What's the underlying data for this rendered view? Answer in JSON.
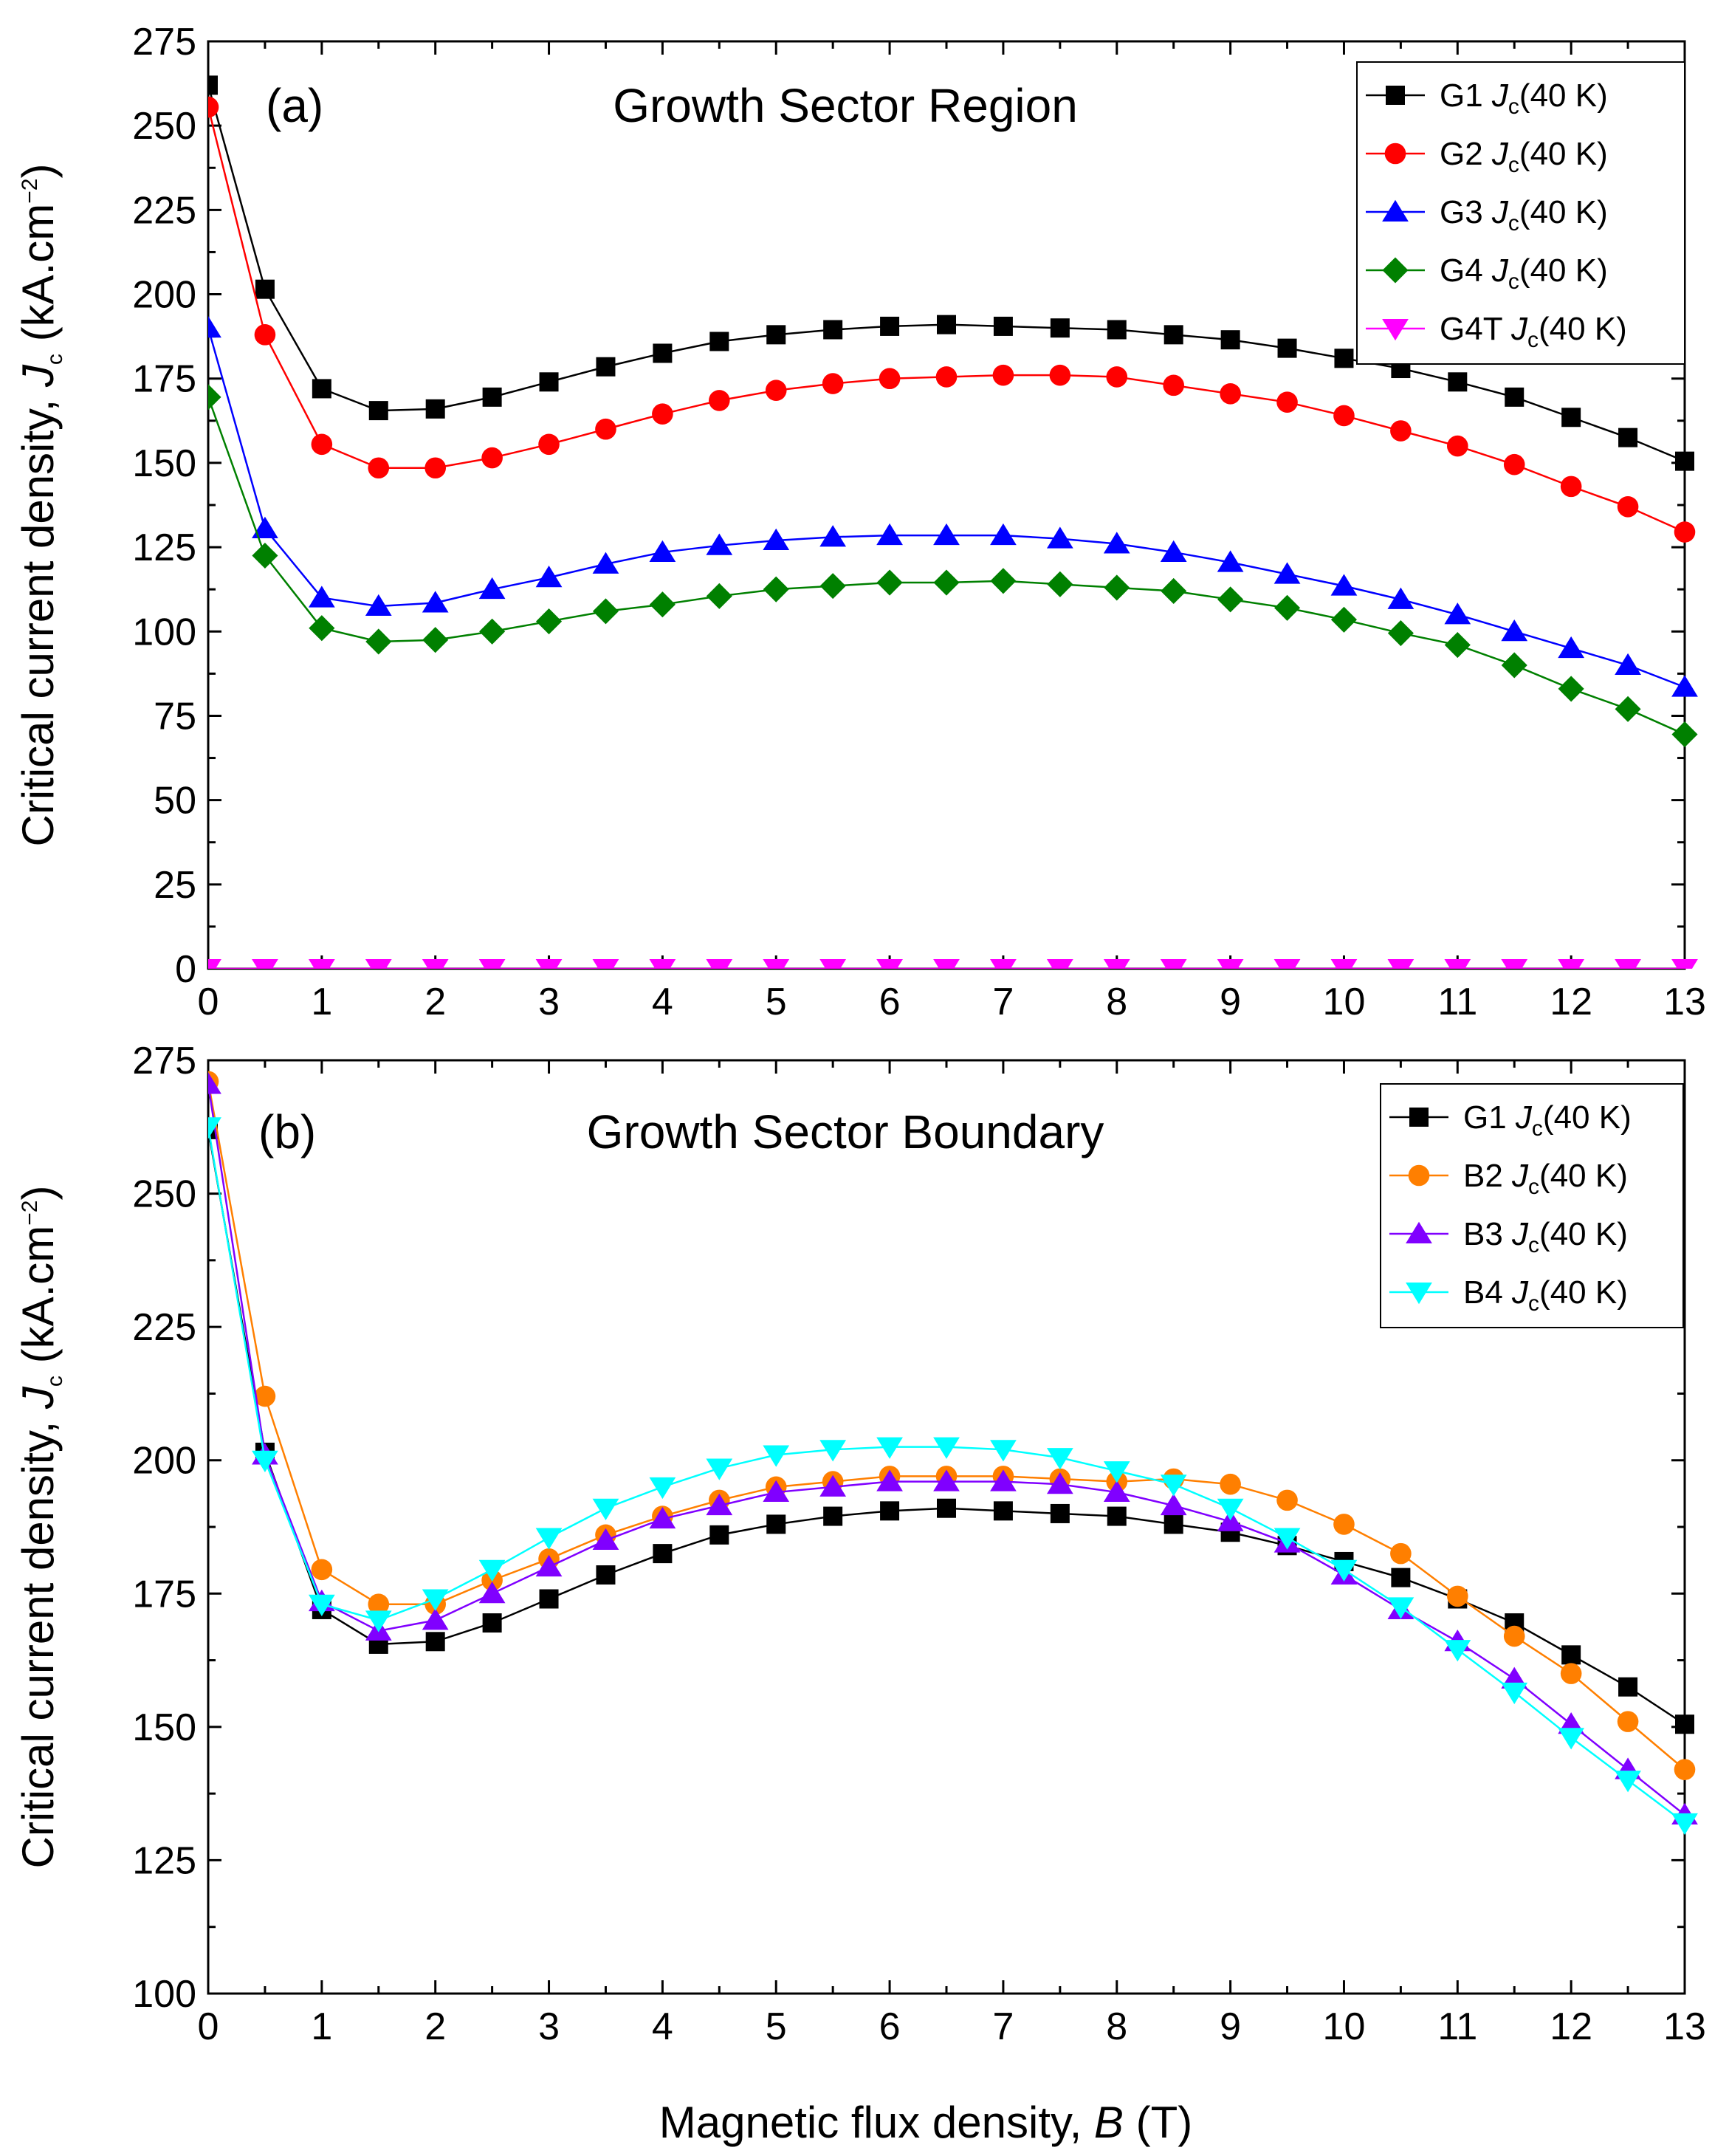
{
  "figure": {
    "xlabel_prefix": "Magnetic flux density, ",
    "xlabel_var": "B",
    "xlabel_suffix": " (T)",
    "ylabel_prefix": "Critical current density, ",
    "ylabel_var": "J",
    "ylabel_sub": "c",
    "ylabel_unit": " (kA.cm",
    "ylabel_sup": "−2",
    "ylabel_close": ")"
  },
  "chart_data": [
    {
      "type": "line",
      "panel_label": "(a)",
      "title": "Growth Sector Region",
      "xlim": [
        0,
        13
      ],
      "ylim": [
        0,
        275
      ],
      "xticks": [
        0,
        1,
        2,
        3,
        4,
        5,
        6,
        7,
        8,
        9,
        10,
        11,
        12,
        13
      ],
      "yticks": [
        0,
        25,
        50,
        75,
        100,
        125,
        150,
        175,
        200,
        225,
        250,
        275
      ],
      "legend_position": "top-right",
      "grid": false,
      "x": [
        0,
        0.5,
        1,
        1.5,
        2,
        2.5,
        3,
        3.5,
        4,
        4.5,
        5,
        5.5,
        6,
        6.5,
        7,
        7.5,
        8,
        8.5,
        9,
        9.5,
        10,
        10.5,
        11,
        11.5,
        12,
        12.5,
        13
      ],
      "series": [
        {
          "name": "G1",
          "legend_suffix": "(40 K)",
          "color": "#000000",
          "marker": "square",
          "values": [
            262,
            201.5,
            172,
            165.5,
            166,
            169.5,
            174,
            178.5,
            182.5,
            186,
            188,
            189.5,
            190.5,
            191,
            190.5,
            190,
            189.5,
            188,
            186.5,
            184,
            181,
            178,
            174,
            169.5,
            163.5,
            157.5,
            150.5
          ]
        },
        {
          "name": "G2",
          "legend_suffix": "(40 K)",
          "color": "#ff0000",
          "marker": "circle",
          "values": [
            255.5,
            188,
            155.5,
            148.5,
            148.5,
            151.5,
            155.5,
            160,
            164.5,
            168.5,
            171.5,
            173.5,
            175,
            175.5,
            176,
            176,
            175.5,
            173,
            170.5,
            168,
            164,
            159.5,
            155,
            149.5,
            143,
            137,
            129.5
          ]
        },
        {
          "name": "G3",
          "legend_suffix": "(40 K)",
          "color": "#0000ff",
          "marker": "triangle-up",
          "values": [
            190,
            130.5,
            110,
            107.5,
            108.5,
            112.5,
            116,
            120,
            123.5,
            125.5,
            127,
            128,
            128.5,
            128.5,
            128.5,
            127.5,
            126,
            123.5,
            120.5,
            117,
            113.5,
            109.5,
            105,
            100,
            95,
            90,
            83.5
          ]
        },
        {
          "name": "G4",
          "legend_suffix": "(40 K)",
          "color": "#008000",
          "marker": "diamond",
          "values": [
            169.5,
            122.5,
            101,
            97,
            97.5,
            100,
            103,
            106,
            108,
            110.5,
            112.5,
            113.5,
            114.5,
            114.5,
            115,
            114,
            113,
            112,
            109.5,
            107,
            103.5,
            99.5,
            96,
            90,
            83,
            77,
            69.5
          ]
        },
        {
          "name": "G4T",
          "legend_suffix": "(40 K)",
          "color": "#ff00ff",
          "marker": "triangle-down",
          "values": [
            0,
            0,
            0,
            0,
            0,
            0,
            0,
            0,
            0,
            0,
            0,
            0,
            0,
            0,
            0,
            0,
            0,
            0,
            0,
            0,
            0,
            0,
            0,
            0,
            0,
            0,
            0
          ]
        }
      ]
    },
    {
      "type": "line",
      "panel_label": "(b)",
      "title": "Growth Sector Boundary",
      "xlim": [
        0,
        13
      ],
      "ylim": [
        100,
        275
      ],
      "xticks": [
        0,
        1,
        2,
        3,
        4,
        5,
        6,
        7,
        8,
        9,
        10,
        11,
        12,
        13
      ],
      "yticks": [
        100,
        125,
        150,
        175,
        200,
        225,
        250,
        275
      ],
      "legend_position": "top-right",
      "grid": false,
      "x": [
        0,
        0.5,
        1,
        1.5,
        2,
        2.5,
        3,
        3.5,
        4,
        4.5,
        5,
        5.5,
        6,
        6.5,
        7,
        7.5,
        8,
        8.5,
        9,
        9.5,
        10,
        10.5,
        11,
        11.5,
        12,
        12.5,
        13
      ],
      "series": [
        {
          "name": "G1",
          "legend_suffix": "(40 K)",
          "color": "#000000",
          "marker": "square",
          "values": [
            262,
            201.5,
            172,
            165.5,
            166,
            169.5,
            174,
            178.5,
            182.5,
            186,
            188,
            189.5,
            190.5,
            191,
            190.5,
            190,
            189.5,
            188,
            186.5,
            184,
            181,
            178,
            174,
            169.5,
            163.5,
            157.5,
            150.5
          ]
        },
        {
          "name": "B2",
          "legend_suffix": "(40 K)",
          "color": "#ff7f00",
          "marker": "circle",
          "values": [
            271,
            212,
            179.5,
            173,
            173,
            177.5,
            181.5,
            186,
            189.5,
            192.5,
            195,
            196,
            197,
            197,
            197,
            196.5,
            196,
            196.5,
            195.5,
            192.5,
            188,
            182.5,
            174.5,
            167,
            160,
            151,
            142
          ]
        },
        {
          "name": "B3",
          "legend_suffix": "(40 K)",
          "color": "#8000ff",
          "marker": "triangle-up",
          "values": [
            270.5,
            201,
            173.5,
            168,
            170,
            175,
            180,
            185,
            189,
            191.5,
            194,
            195,
            196,
            196,
            196,
            195.5,
            194,
            191.5,
            188.5,
            184.5,
            178.5,
            172,
            166,
            159,
            150.5,
            142,
            133.5
          ]
        },
        {
          "name": "B4",
          "legend_suffix": "(40 K)",
          "color": "#00ffff",
          "marker": "triangle-down",
          "values": [
            262.5,
            200,
            173,
            170,
            174,
            179.5,
            185.5,
            191,
            195,
            198.5,
            201,
            202,
            202.5,
            202.5,
            202,
            200.5,
            198,
            195.5,
            191,
            185.5,
            179.5,
            172.5,
            164.5,
            156.5,
            148,
            140,
            132
          ]
        }
      ]
    }
  ]
}
